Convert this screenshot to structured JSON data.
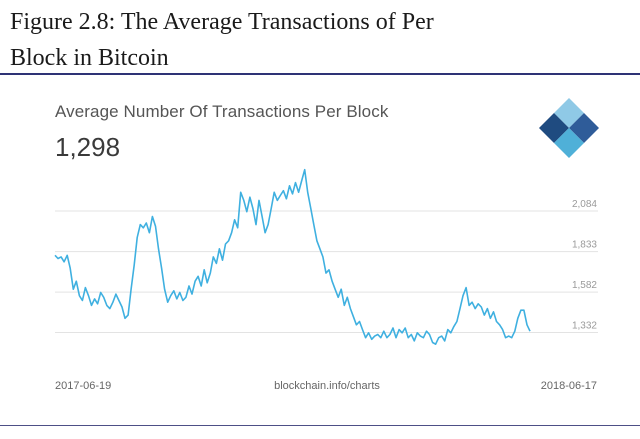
{
  "figure": {
    "caption_line1": "Figure 2.8: The Average Transactions of Per",
    "caption_line2": "Block in Bitcoin"
  },
  "card": {
    "title": "Average Number Of Transactions Per Block",
    "current_value": "1,298",
    "source": "blockchain.info/charts"
  },
  "logo": {
    "icon": "blockchain-cube-logo-icon",
    "colors": [
      "#1f4b80",
      "#4fb0d8",
      "#8fc9e6",
      "#2f5c99"
    ]
  },
  "colors": {
    "line": "#3fb0e0",
    "grid": "#e3e3e3",
    "rule": "#2e3275"
  },
  "chart_data": {
    "type": "line",
    "title": "Average Number Of Transactions Per Block",
    "xlabel": "",
    "ylabel": "",
    "x_tick_labels": [
      "2017-06-19",
      "2018-06-17"
    ],
    "y_ticks": [
      1332,
      1582,
      1833,
      2084
    ],
    "y_tick_labels": [
      "1,332",
      "1,582",
      "1,833",
      "2,084"
    ],
    "ylim": [
      1100,
      2400
    ],
    "grid": true,
    "series": [
      {
        "values": [
          1810,
          1790,
          1800,
          1770,
          1810,
          1730,
          1600,
          1650,
          1560,
          1530,
          1610,
          1560,
          1500,
          1540,
          1510,
          1580,
          1550,
          1500,
          1480,
          1520,
          1570,
          1530,
          1490,
          1420,
          1440,
          1600,
          1750,
          1920,
          2000,
          1980,
          2010,
          1950,
          2050,
          1990,
          1850,
          1730,
          1600,
          1520,
          1560,
          1590,
          1540,
          1580,
          1530,
          1550,
          1620,
          1570,
          1650,
          1680,
          1620,
          1720,
          1640,
          1700,
          1800,
          1760,
          1850,
          1780,
          1880,
          1900,
          1950,
          2030,
          1980,
          2200,
          2150,
          2080,
          2170,
          2100,
          2000,
          2150,
          2050,
          1950,
          2000,
          2100,
          2200,
          2150,
          2180,
          2210,
          2160,
          2240,
          2190,
          2260,
          2200,
          2270,
          2340,
          2200,
          2100,
          2000,
          1900,
          1850,
          1800,
          1700,
          1720,
          1650,
          1600,
          1550,
          1600,
          1500,
          1550,
          1480,
          1430,
          1380,
          1400,
          1350,
          1300,
          1330,
          1290,
          1310,
          1320,
          1300,
          1340,
          1300,
          1320,
          1360,
          1300,
          1350,
          1330,
          1360,
          1300,
          1320,
          1280,
          1330,
          1310,
          1300,
          1340,
          1320,
          1270,
          1260,
          1300,
          1310,
          1280,
          1350,
          1330,
          1370,
          1400,
          1480,
          1560,
          1610,
          1500,
          1520,
          1480,
          1510,
          1490,
          1440,
          1480,
          1420,
          1460,
          1400,
          1380,
          1350,
          1300,
          1310,
          1300,
          1340,
          1420,
          1470,
          1470,
          1380,
          1340
        ]
      }
    ]
  }
}
